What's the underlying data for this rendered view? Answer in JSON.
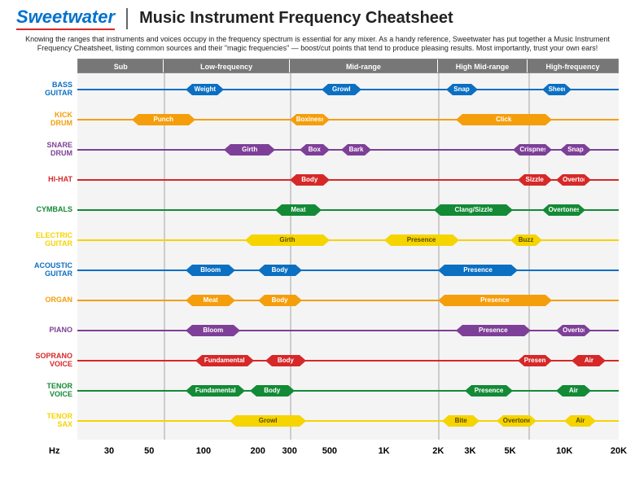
{
  "brand": "Sweetwater",
  "title": "Music Instrument Frequency Cheatsheet",
  "intro": "Knowing the ranges that instruments and voices occupy in the frequency spectrum is essential for any mixer. As a handy reference, Sweetwater has put together a Music Instrument Frequency Cheatsheet, listing common sources and their \"magic frequencies\" — boost/cut points that tend to produce pleasing results. Most importantly, trust your own ears!",
  "colors": {
    "blue": "#0b6fc2",
    "orange": "#f59e0b",
    "purple": "#7e3f98",
    "red": "#d62828",
    "green": "#138a36",
    "yellow": "#f5d400",
    "band_bg": "#777777",
    "grid": "#cccccc"
  },
  "freq_min": 20,
  "freq_max": 20000,
  "axis_ticks": [
    {
      "v": 30,
      "label": "30"
    },
    {
      "v": 50,
      "label": "50"
    },
    {
      "v": 100,
      "label": "100"
    },
    {
      "v": 200,
      "label": "200"
    },
    {
      "v": 300,
      "label": "300"
    },
    {
      "v": 500,
      "label": "500"
    },
    {
      "v": 1000,
      "label": "1K"
    },
    {
      "v": 2000,
      "label": "2K"
    },
    {
      "v": 3000,
      "label": "3K"
    },
    {
      "v": 5000,
      "label": "5K"
    },
    {
      "v": 10000,
      "label": "10K"
    },
    {
      "v": 20000,
      "label": "20K"
    }
  ],
  "axis_hz_label": "Hz",
  "bands": [
    {
      "label": "Sub",
      "from": 20,
      "to": 60
    },
    {
      "label": "Low-frequency",
      "from": 60,
      "to": 300
    },
    {
      "label": "Mid-range",
      "from": 300,
      "to": 2000
    },
    {
      "label": "High Mid-range",
      "from": 2000,
      "to": 6300
    },
    {
      "label": "High-frequency",
      "from": 6300,
      "to": 20000
    }
  ],
  "instruments": [
    {
      "name": "BASS GUITAR",
      "color": "blue",
      "segs": [
        {
          "label": "Weight",
          "from": 80,
          "to": 130
        },
        {
          "label": "Growl",
          "from": 450,
          "to": 750
        },
        {
          "label": "Snap",
          "from": 2200,
          "to": 3300
        },
        {
          "label": "Sheen",
          "from": 7500,
          "to": 11000
        }
      ]
    },
    {
      "name": "KICK DRUM",
      "color": "orange",
      "segs": [
        {
          "label": "Punch",
          "from": 40,
          "to": 90
        },
        {
          "label": "Boxiness",
          "from": 300,
          "to": 500
        },
        {
          "label": "Click",
          "from": 2500,
          "to": 8500
        }
      ]
    },
    {
      "name": "SNARE DRUM",
      "color": "purple",
      "segs": [
        {
          "label": "Girth",
          "from": 130,
          "to": 250
        },
        {
          "label": "Box",
          "from": 340,
          "to": 500
        },
        {
          "label": "Bark",
          "from": 580,
          "to": 850
        },
        {
          "label": "Crispness",
          "from": 5200,
          "to": 8500
        },
        {
          "label": "Snap",
          "from": 9500,
          "to": 14000
        }
      ]
    },
    {
      "name": "HI-HAT",
      "color": "red",
      "segs": [
        {
          "label": "Body",
          "from": 300,
          "to": 500
        },
        {
          "label": "Sizzle",
          "from": 5500,
          "to": 8500
        },
        {
          "label": "Overtones",
          "from": 9000,
          "to": 14000
        }
      ]
    },
    {
      "name": "CYMBALS",
      "color": "green",
      "segs": [
        {
          "label": "Meat",
          "from": 250,
          "to": 450
        },
        {
          "label": "Clang/Sizzle",
          "from": 1900,
          "to": 5200
        },
        {
          "label": "Overtones",
          "from": 7500,
          "to": 13000
        }
      ]
    },
    {
      "name": "ELECTRIC GUITAR",
      "color": "yellow",
      "segs": [
        {
          "label": "Girth",
          "from": 170,
          "to": 500
        },
        {
          "label": "Presence",
          "from": 1000,
          "to": 2600
        },
        {
          "label": "Buzz",
          "from": 5000,
          "to": 7500
        }
      ]
    },
    {
      "name": "ACOUSTIC GUITAR",
      "color": "blue",
      "segs": [
        {
          "label": "Bloom",
          "from": 80,
          "to": 150
        },
        {
          "label": "Body",
          "from": 200,
          "to": 350
        },
        {
          "label": "Presence",
          "from": 2000,
          "to": 5500
        }
      ]
    },
    {
      "name": "ORGAN",
      "color": "orange",
      "segs": [
        {
          "label": "Meat",
          "from": 80,
          "to": 150
        },
        {
          "label": "Body",
          "from": 200,
          "to": 350
        },
        {
          "label": "Presence",
          "from": 2000,
          "to": 8500
        }
      ]
    },
    {
      "name": "PIANO",
      "color": "purple",
      "segs": [
        {
          "label": "Bloom",
          "from": 80,
          "to": 160
        },
        {
          "label": "Presence",
          "from": 2500,
          "to": 6500
        },
        {
          "label": "Overtones",
          "from": 9000,
          "to": 14000
        }
      ]
    },
    {
      "name": "SOPRANO VOICE",
      "color": "red",
      "segs": [
        {
          "label": "Fundamental",
          "from": 90,
          "to": 190
        },
        {
          "label": "Body",
          "from": 220,
          "to": 370
        },
        {
          "label": "Presence",
          "from": 5500,
          "to": 8500
        },
        {
          "label": "Air",
          "from": 11000,
          "to": 17000
        }
      ]
    },
    {
      "name": "TENOR VOICE",
      "color": "green",
      "segs": [
        {
          "label": "Fundamental",
          "from": 80,
          "to": 170
        },
        {
          "label": "Body",
          "from": 180,
          "to": 320
        },
        {
          "label": "Presence",
          "from": 2800,
          "to": 5200
        },
        {
          "label": "Air",
          "from": 9000,
          "to": 14000
        }
      ]
    },
    {
      "name": "TENOR SAX",
      "color": "yellow",
      "segs": [
        {
          "label": "Growl",
          "from": 140,
          "to": 370
        },
        {
          "label": "Bite",
          "from": 2100,
          "to": 3400
        },
        {
          "label": "Overtones",
          "from": 4200,
          "to": 7000
        },
        {
          "label": "Air",
          "from": 10000,
          "to": 15000
        }
      ]
    }
  ]
}
